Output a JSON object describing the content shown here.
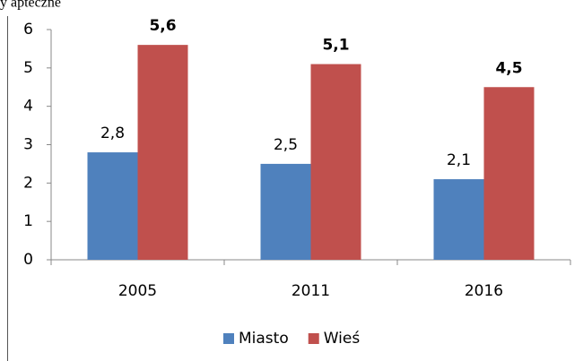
{
  "chart_data": {
    "type": "bar",
    "title": "y apteczne",
    "categories": [
      "2005",
      "2011",
      "2016"
    ],
    "series": [
      {
        "name": "Miasto",
        "color": "#4f81bd",
        "values": [
          2.8,
          2.5,
          2.1
        ],
        "value_labels": [
          "2,8",
          "2,5",
          "2,1"
        ],
        "bold_labels": false
      },
      {
        "name": "Wieś",
        "color": "#c0504d",
        "values": [
          5.6,
          5.1,
          4.5
        ],
        "value_labels": [
          "5,6",
          "5,1",
          "4,5"
        ],
        "bold_labels": true
      }
    ],
    "ylim": [
      0,
      6
    ],
    "yticks": [
      0,
      1,
      2,
      3,
      4,
      5,
      6
    ],
    "grid": false,
    "legend": "bottom"
  }
}
